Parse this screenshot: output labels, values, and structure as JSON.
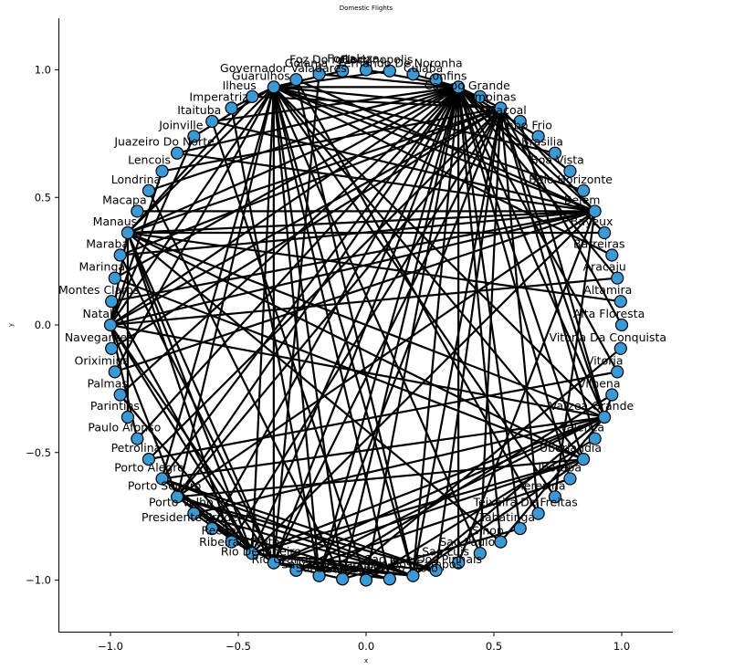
{
  "chart_data": {
    "type": "network",
    "title": "Domestic Flights",
    "xlabel": "x",
    "ylabel": "y",
    "xlim": [
      -1.2,
      1.2
    ],
    "ylim": [
      -1.2,
      1.2
    ],
    "xticks": [
      -1.0,
      -0.5,
      0.0,
      0.5,
      1.0
    ],
    "yticks": [
      -1.0,
      -0.5,
      0.0,
      0.5,
      1.0
    ],
    "xtick_labels": [
      "−1.0",
      "−0.5",
      "0.0",
      "0.5",
      "1.0"
    ],
    "ytick_labels": [
      "−1.0",
      "−0.5",
      "0.0",
      "0.5",
      "1.0"
    ],
    "layout": "circular",
    "node_color": "#3b9ad6",
    "edge_color": "#000000",
    "nodes": [
      "Alta Floresta",
      "Altamira",
      "Aracaju",
      "Barreiras",
      "Bayeux",
      "Belem",
      "Belo Horizonte",
      "Boa Vista",
      "Brasilia",
      "Cabo Frio",
      "Cacoal",
      "Campinas",
      "Campo Grande",
      "Confins",
      "Cuiaba",
      "Fernando De Noronha",
      "Florianopolis",
      "Fortaleza",
      "Foz Do Iguacu",
      "Goiania",
      "Governador Valadares",
      "Guarulhos",
      "Ilheus",
      "Imperatriz",
      "Itaituba",
      "Joinville",
      "Juazeiro Do Norte",
      "Lencois",
      "Londrina",
      "Macapa",
      "Manaus",
      "Maraba",
      "Maringa",
      "Montes Claros",
      "Natal",
      "Navegantes",
      "Oriximina",
      "Palmas",
      "Parintins",
      "Paulo Afonso",
      "Petrolina",
      "Porto Alegre",
      "Porto Seguro",
      "Porto Velho",
      "Presidente Prudente",
      "Recife",
      "Ribeirao Preto",
      "Rio De Janeiro",
      "Rio Grande",
      "Salvador",
      "Santa Maria",
      "Santarem",
      "Sao Jose Do Rio Preto",
      "Sao Jose Dos Campos",
      "Sao Jose Dos Pinhais",
      "Sao Luis",
      "Sao Paulo",
      "Sinop",
      "Tabatinga",
      "Teixeira De Freitas",
      "Teresina",
      "Uberaba",
      "Uberlandia",
      "Valenca",
      "Varzea Grande",
      "Vilhena",
      "Vitoria",
      "Vitoria Da Conquista"
    ],
    "edges": [
      [
        21,
        13
      ],
      [
        21,
        11
      ],
      [
        21,
        5
      ],
      [
        21,
        30
      ],
      [
        21,
        34
      ],
      [
        21,
        47
      ],
      [
        21,
        46
      ],
      [
        21,
        49
      ],
      [
        21,
        52
      ],
      [
        21,
        53
      ],
      [
        21,
        41
      ],
      [
        21,
        42
      ],
      [
        21,
        60
      ],
      [
        21,
        62
      ],
      [
        21,
        64
      ],
      [
        21,
        3
      ],
      [
        21,
        8
      ],
      [
        21,
        6
      ],
      [
        21,
        25
      ],
      [
        21,
        23
      ],
      [
        21,
        36
      ],
      [
        21,
        18
      ],
      [
        21,
        16
      ],
      [
        21,
        50
      ],
      [
        21,
        56
      ],
      [
        13,
        11
      ],
      [
        13,
        5
      ],
      [
        13,
        30
      ],
      [
        13,
        34
      ],
      [
        13,
        47
      ],
      [
        13,
        46
      ],
      [
        13,
        49
      ],
      [
        13,
        53
      ],
      [
        13,
        41
      ],
      [
        13,
        42
      ],
      [
        13,
        44
      ],
      [
        13,
        61
      ],
      [
        13,
        62
      ],
      [
        13,
        64
      ],
      [
        13,
        66
      ],
      [
        13,
        58
      ],
      [
        13,
        55
      ],
      [
        13,
        57
      ],
      [
        13,
        51
      ],
      [
        13,
        50
      ],
      [
        13,
        39
      ],
      [
        13,
        37
      ],
      [
        13,
        32
      ],
      [
        13,
        28
      ],
      [
        13,
        26
      ],
      [
        13,
        24
      ],
      [
        13,
        19
      ],
      [
        13,
        17
      ],
      [
        13,
        15
      ],
      [
        13,
        9
      ],
      [
        13,
        7
      ],
      [
        13,
        4
      ],
      [
        13,
        2
      ],
      [
        11,
        5
      ],
      [
        11,
        30
      ],
      [
        11,
        34
      ],
      [
        11,
        47
      ],
      [
        11,
        45
      ],
      [
        11,
        53
      ],
      [
        11,
        54
      ],
      [
        11,
        56
      ],
      [
        11,
        59
      ],
      [
        11,
        63
      ],
      [
        11,
        64
      ],
      [
        11,
        49
      ],
      [
        11,
        42
      ],
      [
        11,
        40
      ],
      [
        11,
        35
      ],
      [
        11,
        31
      ],
      [
        11,
        27
      ],
      [
        11,
        22
      ],
      [
        11,
        0
      ],
      [
        5,
        30
      ],
      [
        5,
        34
      ],
      [
        5,
        29
      ],
      [
        5,
        31
      ],
      [
        5,
        33
      ],
      [
        5,
        42
      ],
      [
        5,
        46
      ],
      [
        5,
        55
      ],
      [
        5,
        60
      ],
      [
        5,
        20
      ],
      [
        5,
        24
      ],
      [
        5,
        26
      ],
      [
        5,
        36
      ],
      [
        30,
        34
      ],
      [
        30,
        47
      ],
      [
        30,
        46
      ],
      [
        30,
        62
      ],
      [
        30,
        64
      ],
      [
        30,
        1
      ],
      [
        30,
        4
      ],
      [
        30,
        38
      ],
      [
        30,
        45
      ],
      [
        30,
        22
      ],
      [
        30,
        57
      ],
      [
        34,
        47
      ],
      [
        34,
        46
      ],
      [
        34,
        42
      ],
      [
        34,
        2
      ],
      [
        34,
        64
      ],
      [
        34,
        27
      ],
      [
        34,
        25
      ],
      [
        34,
        39
      ],
      [
        64,
        46
      ],
      [
        64,
        47
      ],
      [
        64,
        41
      ],
      [
        64,
        43
      ],
      [
        64,
        48
      ],
      [
        64,
        53
      ],
      [
        64,
        57
      ],
      [
        64,
        65
      ],
      [
        64,
        10
      ],
      [
        46,
        41
      ],
      [
        46,
        42
      ],
      [
        46,
        43
      ],
      [
        46,
        53
      ],
      [
        46,
        54
      ],
      [
        46,
        62
      ],
      [
        46,
        37
      ],
      [
        46,
        33
      ],
      [
        47,
        41
      ],
      [
        47,
        42
      ],
      [
        47,
        53
      ],
      [
        47,
        62
      ],
      [
        47,
        52
      ],
      [
        47,
        50
      ],
      [
        47,
        31
      ],
      [
        42,
        62
      ],
      [
        42,
        54
      ],
      [
        42,
        53
      ],
      [
        41,
        54
      ],
      [
        41,
        53
      ],
      [
        43,
        53
      ],
      [
        44,
        52
      ],
      [
        62,
        53
      ],
      [
        62,
        32
      ],
      [
        61,
        48
      ],
      [
        67,
        50
      ],
      [
        66,
        40
      ],
      [
        63,
        51
      ],
      [
        65,
        49
      ],
      [
        58,
        50
      ],
      [
        59,
        20
      ],
      [
        19,
        47
      ],
      [
        20,
        53
      ],
      [
        23,
        49
      ],
      [
        24,
        51
      ],
      [
        28,
        50
      ],
      [
        29,
        5
      ]
    ]
  }
}
